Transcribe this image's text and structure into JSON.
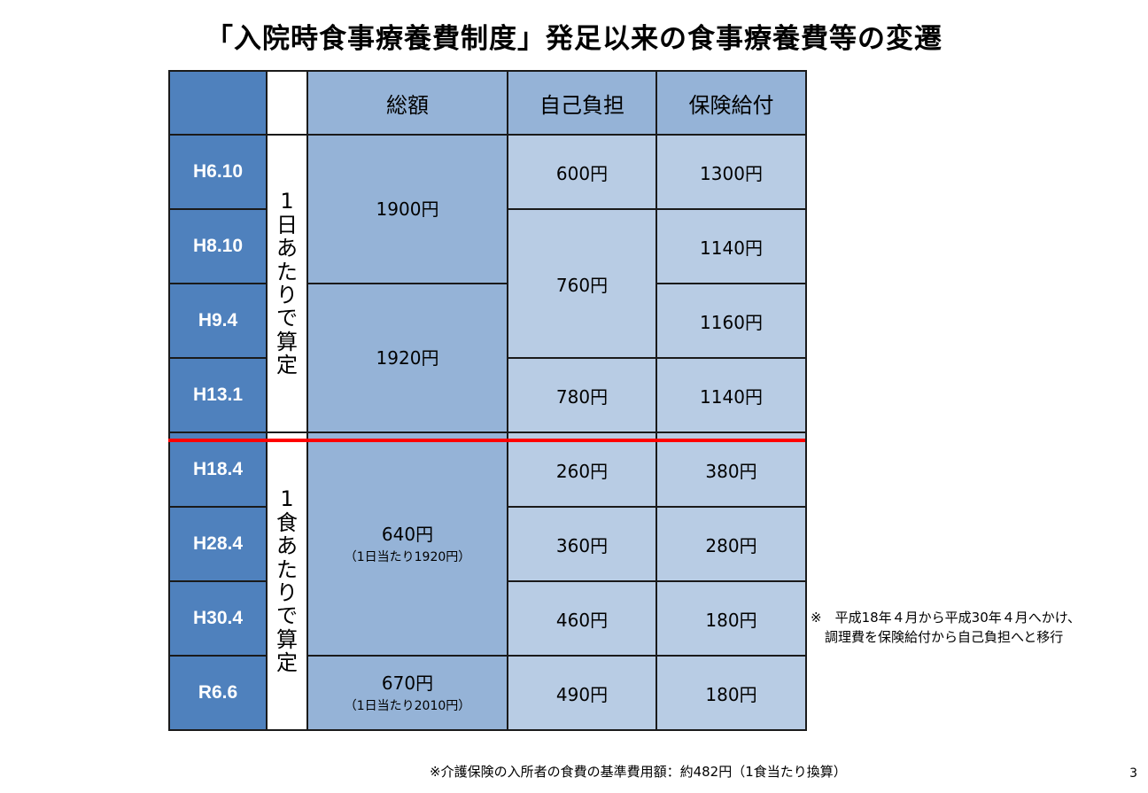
{
  "title": "「入院時食事療養費制度」発足以来の食事療養費等の変遷",
  "headers": {
    "total": "総額",
    "self_pay": "自己負担",
    "insurance": "保険給付"
  },
  "unit_labels": {
    "per_day": "1日あたりで算定",
    "per_meal": "1食あたりで算定"
  },
  "rows": [
    {
      "era": "H6.10",
      "self_pay": "600円",
      "insurance": "1300円"
    },
    {
      "era": "H8.10",
      "insurance": "1140円"
    },
    {
      "era": "H9.4",
      "insurance": "1160円"
    },
    {
      "era": "H13.1",
      "self_pay": "780円",
      "insurance": "1140円"
    },
    {
      "era": "H18.4",
      "self_pay": "260円",
      "insurance": "380円"
    },
    {
      "era": "H28.4",
      "self_pay": "360円",
      "insurance": "280円"
    },
    {
      "era": "H30.4",
      "self_pay": "460円",
      "insurance": "180円"
    },
    {
      "era": "R6.6",
      "self_pay": "490円",
      "insurance": "180円"
    }
  ],
  "merged": {
    "total_1900": "1900円",
    "total_1920": "1920円",
    "self_760": "760円",
    "total_640": "640",
    "total_640_unit": "円",
    "total_640_note": "（1日当たり1920円）",
    "total_670": "670円",
    "total_670_note": "（1日当たり2010円）"
  },
  "note": {
    "line1": "※　平成18年４月から平成30年４月へかけ、",
    "line2": "調理費を保険給付から自己負担へと移行"
  },
  "footer": "※介護保険の入所者の食費の基準費用額：約482円（1食当たり換算）",
  "page_number": "3",
  "colors": {
    "era_bg": "#4f81bd",
    "total_bg": "#95b3d7",
    "cell_bg": "#b8cce4",
    "divider": "#ff0000"
  }
}
